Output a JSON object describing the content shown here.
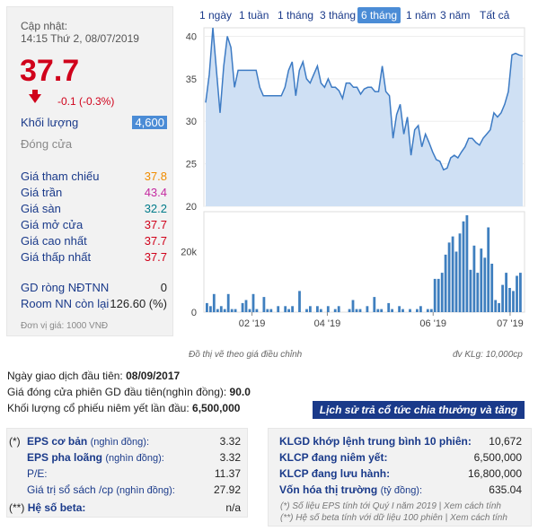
{
  "left": {
    "update_label": "Cập nhật:",
    "update_time": "14:15 Thứ 2, 08/07/2019",
    "price": "37.7",
    "change": "-0.1 (-0.3%)",
    "volume_label": "Khối lượng",
    "volume_value": "4,600",
    "close_label": "Đóng cửa",
    "rows": [
      {
        "label": "Giá tham chiếu",
        "value": "37.8"
      },
      {
        "label": "Giá trần",
        "value": "43.4"
      },
      {
        "label": "Giá sàn",
        "value": "32.2"
      },
      {
        "label": "Giá mở cửa",
        "value": "37.7"
      },
      {
        "label": "Giá cao nhất",
        "value": "37.7"
      },
      {
        "label": "Giá thấp nhất",
        "value": "37.7"
      }
    ],
    "gd_label": "GD ròng NĐTNN",
    "gd_value": "0",
    "room_label": "Room NN còn lại",
    "room_value": "126.60 (%)",
    "unit_note": "Đơn vị giá: 1000 VNĐ",
    "colors": {
      "up": "#f08c00",
      "ceil": "#d0021b",
      "floor": "#007b8a",
      "down": "#d0021b"
    }
  },
  "tabs": [
    "1 ngày",
    "1 tuần",
    "1 tháng",
    "3 tháng",
    "6 tháng",
    "1 năm",
    "3 năm",
    "Tất cả"
  ],
  "active_tab": "6 tháng",
  "chart_notes": {
    "left": "Đồ thị vẽ theo giá điều chỉnh",
    "right": "đv KLg: 10,000cp"
  },
  "chart_data": {
    "type": "area",
    "price_y_ticks": [
      "40",
      "35",
      "30",
      "25",
      "20"
    ],
    "volume_y_ticks": [
      "20k",
      "0"
    ],
    "x_ticks": [
      "02 '19",
      "04 '19",
      "06 '19",
      "07 '19"
    ],
    "price_ylim": [
      20,
      41
    ],
    "volume_ylim": [
      0,
      32
    ],
    "prices": [
      32.2,
      35.5,
      41,
      36,
      31,
      36.5,
      40,
      38.7,
      34,
      36,
      36,
      36,
      36,
      36,
      36,
      34,
      33,
      33,
      33,
      33,
      33,
      33,
      34,
      36,
      37,
      33,
      36,
      37,
      35,
      34.5,
      35.5,
      36.5,
      34.5,
      34,
      35,
      34,
      34,
      33.6,
      32.7,
      34.5,
      34.5,
      34,
      34,
      33.2,
      33.8,
      34,
      34,
      33.5,
      33.5,
      36.5,
      33.5,
      33,
      28,
      30.8,
      32,
      28.5,
      30.5,
      26,
      29,
      29.5,
      27,
      28.5,
      27.5,
      26.4,
      25.5,
      25.3,
      24.3,
      24.5,
      25.7,
      26,
      25.7,
      26.4,
      27,
      28,
      28,
      27.5,
      27.2,
      28,
      28.5,
      29,
      31,
      30.5,
      31,
      32,
      33.5,
      37.8,
      38,
      37.8,
      37.7
    ],
    "volumes": [
      3,
      2,
      6,
      1,
      2,
      1,
      6,
      1,
      1,
      0,
      3,
      4,
      1,
      6,
      1,
      0,
      5,
      1,
      1,
      0,
      2,
      0,
      2,
      1,
      2,
      0,
      7,
      0,
      1,
      2,
      0,
      2,
      1,
      0,
      2,
      0,
      1,
      2,
      0,
      0,
      1,
      4,
      1,
      1,
      0,
      2,
      0,
      5,
      1,
      1,
      0,
      3,
      1,
      0,
      2,
      1,
      0,
      1,
      0,
      1,
      2,
      0,
      1,
      1,
      11,
      11,
      13,
      19,
      23,
      25,
      20,
      26,
      30,
      32,
      14,
      22,
      13,
      21,
      18,
      28,
      16,
      4,
      3,
      9,
      13,
      8,
      7,
      12,
      13
    ]
  },
  "info": {
    "first_day_label": "Ngày giao dịch đầu tiên:",
    "first_day": "08/09/2017",
    "first_close_label": "Giá đóng cửa phiên GD đầu tiên(nghìn đồng):",
    "first_close": "90.0",
    "first_vol_label": "Khối lượng cổ phiếu niêm yết lần đầu:",
    "first_vol": "6,500,000",
    "history_button": "Lịch sử trả cổ tức chia thưởng và tăng vốn »"
  },
  "left_table": {
    "star": "(*)",
    "rows": [
      {
        "key": "EPS cơ bản",
        "sub": "(nghìn đồng):",
        "value": "3.32"
      },
      {
        "key": "EPS pha loãng",
        "sub": "(nghìn đồng):",
        "value": "3.32"
      },
      {
        "key": "P/E",
        "sub": ":",
        "value": "11.37"
      },
      {
        "key": "Giá trị sổ sách /cp",
        "sub": "(nghìn đồng):",
        "value": "27.92"
      }
    ],
    "beta_star": "(**)",
    "beta_key": "Hệ số beta:",
    "beta_value": "n/a"
  },
  "right_table": {
    "rows": [
      {
        "key": "KLGD khớp lệnh trung bình 10 phiên:",
        "value": "10,672"
      },
      {
        "key": "KLCP đang niêm yết:",
        "value": "6,500,000"
      },
      {
        "key": "KLCP đang lưu hành:",
        "value": "16,800,000"
      },
      {
        "key": "Vốn hóa thị trường",
        "sub": "(tỷ đồng):",
        "value": "635.04"
      }
    ],
    "note1": "(*) Số liệu EPS tính tới Quý I năm 2019 | Xem cách tính",
    "note2": "(**) Hệ số beta tính với dữ liệu 100 phiên | Xem cách tính"
  }
}
